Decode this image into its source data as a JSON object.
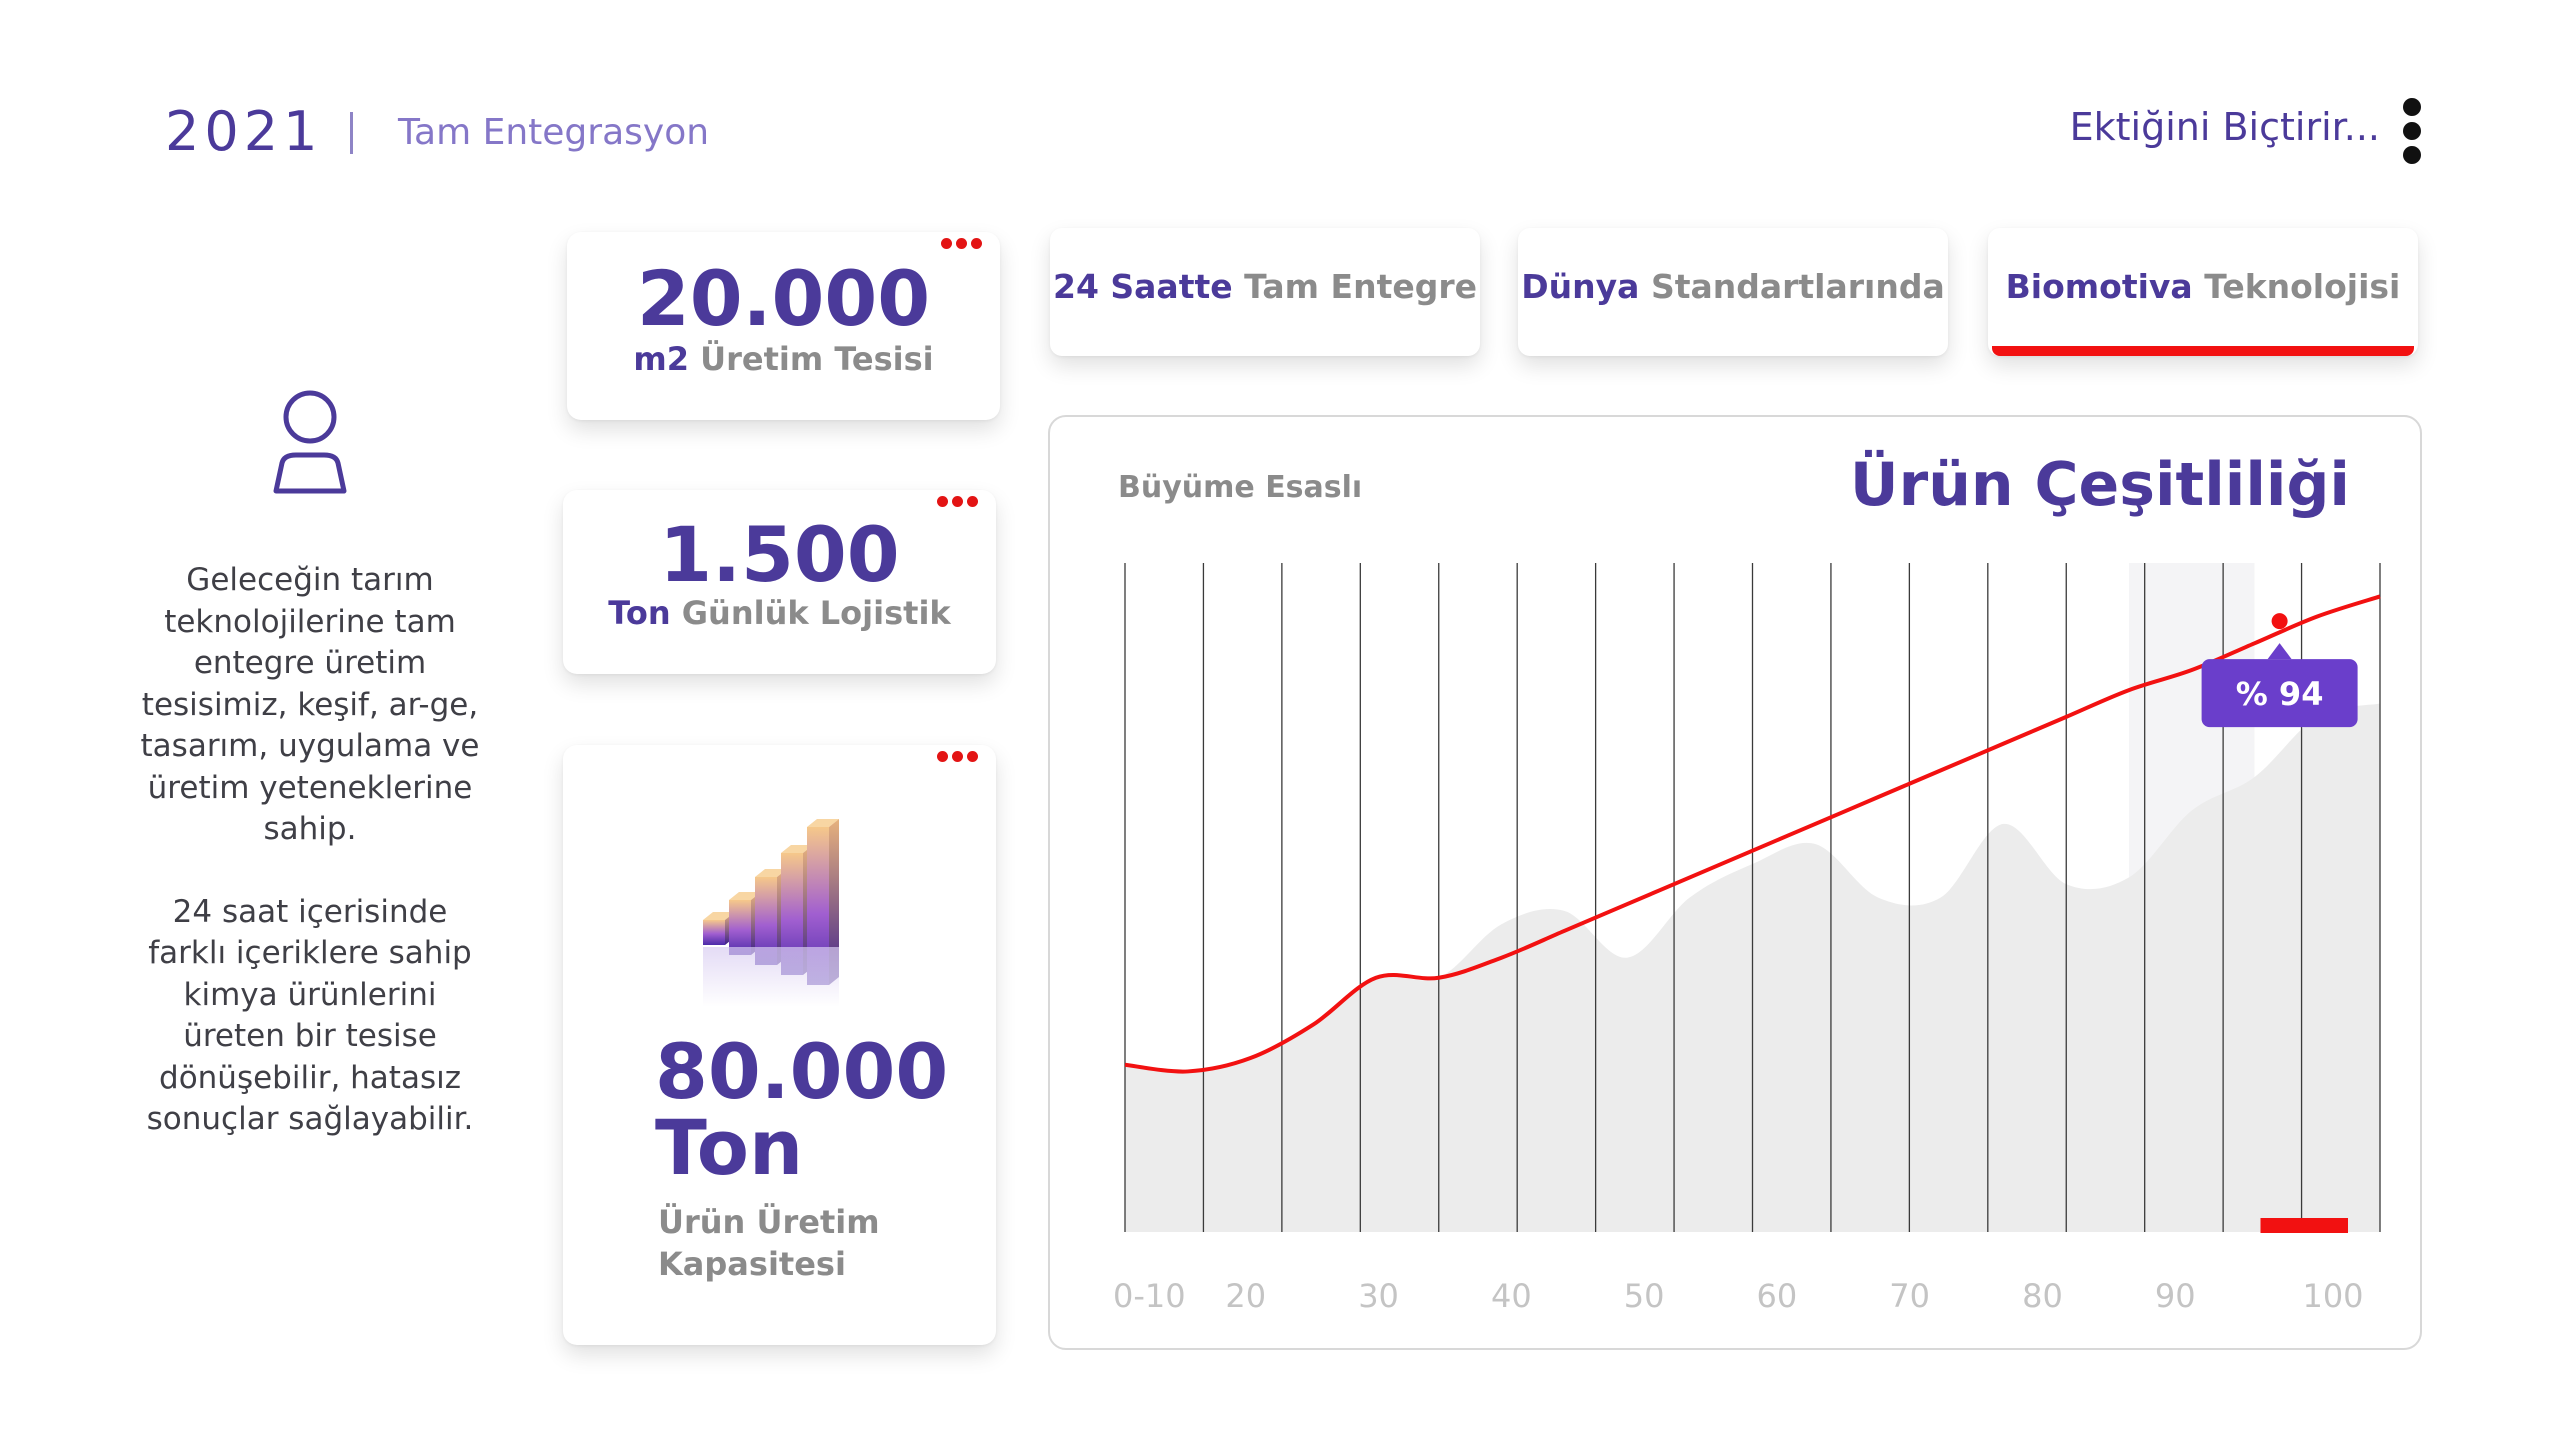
{
  "header": {
    "year": "2021",
    "subtitle": "Tam Entegrasyon",
    "right_text": "Ektiğini Biçtirir..."
  },
  "sidebar": {
    "icon": "user-icon",
    "paragraph1": "Geleceğin tarım teknolojilerine tam entegre üretim tesisimiz, keşif, ar-ge, tasarım, uygulama ve üretim yeteneklerine sahip.",
    "paragraph2": "24 saat içerisinde farklı içeriklere sahip kimya ürünlerini üreten bir tesise dönüşebilir, hatasız sonuçlar sağlayabilir."
  },
  "stats": [
    {
      "value": "20.000",
      "unit": "m2",
      "caption": "Üretim Tesisi"
    },
    {
      "value": "1.500",
      "unit": "Ton",
      "caption": "Günlük Lojistik"
    },
    {
      "value": "80.000",
      "value2": "Ton",
      "caption_line1": "Ürün Üretim",
      "caption_line2": "Kapasitesi",
      "icon": "bar-chart-3d-icon"
    }
  ],
  "tabs": [
    {
      "bold": "24 Saatte",
      "rest": "Tam Entegre",
      "active": false
    },
    {
      "bold": "Dünya",
      "rest": "Standartlarında",
      "active": false
    },
    {
      "bold": "Biomotiva",
      "rest": "Teknolojisi",
      "active": true
    }
  ],
  "chart_panel": {
    "subtitle": "Büyüme Esaslı",
    "title": "Ürün Çeşitliliği",
    "badge": "% 94"
  },
  "colors": {
    "primary": "#4b3a9a",
    "accent_red": "#f21111",
    "badge": "#6a3ecb",
    "area_gray": "#ececec"
  },
  "chart_data": {
    "type": "line",
    "title": "Ürün Çeşitliliği",
    "x_tick_labels": [
      "0-10",
      "20",
      "30",
      "40",
      "50",
      "60",
      "70",
      "80",
      "90",
      "100"
    ],
    "xlim": [
      0,
      100
    ],
    "ylim": [
      0,
      100
    ],
    "series": [
      {
        "type": "line",
        "color": "#f21111",
        "x": [
          0,
          5,
          10,
          15,
          20,
          25,
          30,
          35,
          40,
          45,
          50,
          55,
          60,
          65,
          70,
          75,
          80,
          85,
          90,
          95,
          100
        ],
        "y": [
          25,
          24,
          26,
          31,
          38,
          38,
          41,
          45,
          49,
          53,
          57,
          61,
          65,
          69,
          73,
          77,
          81,
          84,
          88,
          92,
          95
        ]
      },
      {
        "type": "area",
        "color": "#ececec",
        "x": [
          0,
          5,
          10,
          15,
          20,
          25,
          30,
          35,
          40,
          45,
          50,
          55,
          60,
          65,
          70,
          75,
          80,
          85,
          90,
          95,
          100
        ],
        "y": [
          25,
          24,
          26,
          31,
          38,
          38,
          46,
          48,
          41,
          50,
          55,
          58,
          50,
          50,
          61,
          52,
          53,
          63,
          68,
          77,
          79
        ]
      }
    ],
    "highlight": {
      "x": 92,
      "y": 94,
      "label": "% 94"
    },
    "highlight_x_range": [
      90,
      100
    ],
    "shaded_x_range": [
      80,
      90
    ],
    "grid": true
  }
}
